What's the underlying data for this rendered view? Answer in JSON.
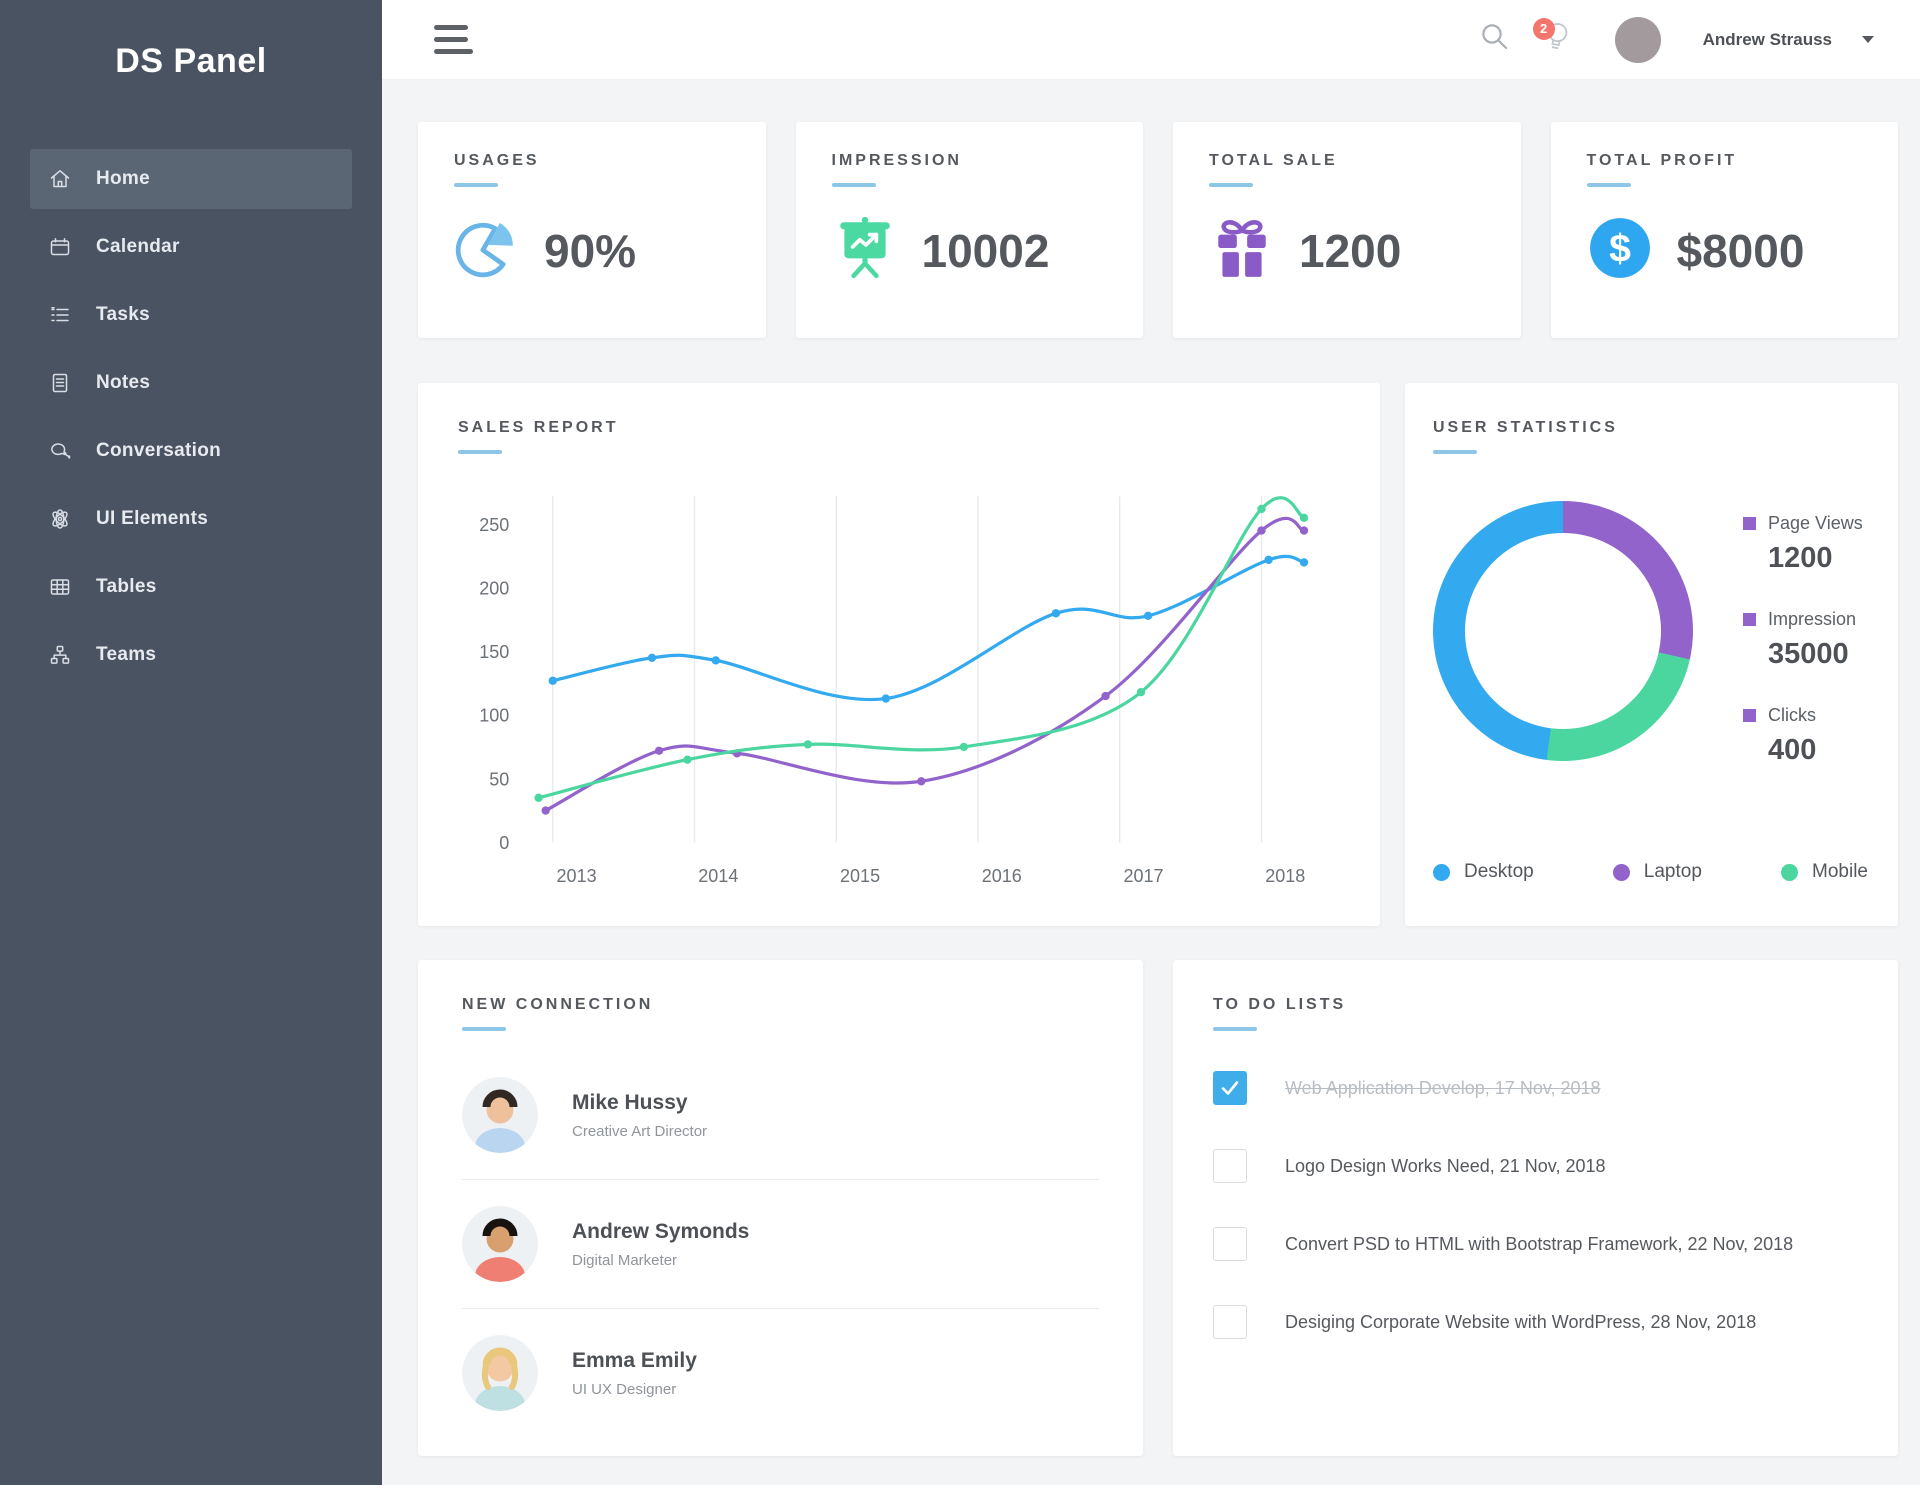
{
  "app": {
    "logo": "DS Panel"
  },
  "colors": {
    "sidebar_bg": "#4a5362",
    "sidebar_active_bg": "#5b6675",
    "accent_underline": "#8ec6e8",
    "blue": "#33a9f0",
    "purple": "#9163cb",
    "green": "#4bd6a0",
    "badge_red": "#f4756b",
    "checkbox_checked": "#3fade9"
  },
  "sidebar": {
    "items": [
      {
        "label": "Home",
        "icon": "home-icon",
        "active": true
      },
      {
        "label": "Calendar",
        "icon": "calendar-icon",
        "active": false
      },
      {
        "label": "Tasks",
        "icon": "tasks-icon",
        "active": false
      },
      {
        "label": "Notes",
        "icon": "notes-icon",
        "active": false
      },
      {
        "label": "Conversation",
        "icon": "conversation-icon",
        "active": false
      },
      {
        "label": "UI Elements",
        "icon": "atom-icon",
        "active": false
      },
      {
        "label": "Tables",
        "icon": "table-grid-icon",
        "active": false
      },
      {
        "label": "Teams",
        "icon": "org-chart-icon",
        "active": false
      }
    ]
  },
  "topbar": {
    "notification_count": "2",
    "user_name": "Andrew Strauss"
  },
  "stat_cards": [
    {
      "title": "USAGES",
      "value": "90%",
      "icon": "pie-chart-icon"
    },
    {
      "title": "IMPRESSION",
      "value": "10002",
      "icon": "presentation-icon"
    },
    {
      "title": "TOTAL SALE",
      "value": "1200",
      "icon": "gift-icon"
    },
    {
      "title": "TOTAL PROFIT",
      "value": "$8000",
      "icon": "dollar-circle-icon"
    }
  ],
  "sales_report": {
    "title": "SALES REPORT",
    "chart_data": {
      "type": "line",
      "title": "SALES REPORT",
      "x_ticks": [
        2013,
        2014,
        2015,
        2016,
        2017,
        2018
      ],
      "y_ticks": [
        0,
        50,
        100,
        150,
        200,
        250
      ],
      "xlim": [
        2012.8,
        2018.42
      ],
      "ylim": [
        0,
        272
      ],
      "grid": "vertical-only",
      "series": [
        {
          "name": "Desktop",
          "color": "#33a9f0",
          "points": [
            [
              2013,
              127
            ],
            [
              2013.7,
              145
            ],
            [
              2014.15,
              143
            ],
            [
              2015.35,
              113
            ],
            [
              2016.55,
              180
            ],
            [
              2017.2,
              178
            ],
            [
              2018.05,
              222
            ],
            [
              2018.3,
              220
            ]
          ]
        },
        {
          "name": "Laptop",
          "color": "#9163cb",
          "points": [
            [
              2012.95,
              25
            ],
            [
              2013.75,
              72
            ],
            [
              2014.3,
              70
            ],
            [
              2015.6,
              48
            ],
            [
              2016.9,
              115
            ],
            [
              2018.0,
              245
            ],
            [
              2018.3,
              245
            ]
          ]
        },
        {
          "name": "Mobile",
          "color": "#4bd6a0",
          "points": [
            [
              2012.9,
              35
            ],
            [
              2013.95,
              65
            ],
            [
              2014.8,
              77
            ],
            [
              2015.9,
              75
            ],
            [
              2017.15,
              118
            ],
            [
              2018.0,
              262
            ],
            [
              2018.3,
              255
            ]
          ]
        }
      ]
    }
  },
  "user_statistics": {
    "title": "USER STATISTICS",
    "chart_data": {
      "type": "pie",
      "donut": true,
      "start_angle_deg": 0,
      "segments": [
        {
          "label": "Laptop",
          "percent": 28.5,
          "color": "#9163cb"
        },
        {
          "label": "Mobile",
          "percent": 23.5,
          "color": "#4bd6a0"
        },
        {
          "label": "Desktop",
          "percent": 48,
          "color": "#33a9f0"
        }
      ]
    },
    "stats": [
      {
        "label": "Page Views",
        "value": "1200"
      },
      {
        "label": "Impression",
        "value": "35000"
      },
      {
        "label": "Clicks",
        "value": "400"
      }
    ],
    "device_legend": [
      {
        "label": "Desktop",
        "color": "#33a9f0"
      },
      {
        "label": "Laptop",
        "color": "#9163cb"
      },
      {
        "label": "Mobile",
        "color": "#4bd6a0"
      }
    ]
  },
  "new_connection": {
    "title": "NEW CONNECTION",
    "people": [
      {
        "name": "Mike Hussy",
        "role": "Creative Art Director",
        "avatar": {
          "shirt": "#b9d5ef",
          "hair": "#322823",
          "skin": "#eec19c"
        }
      },
      {
        "name": "Andrew Symonds",
        "role": "Digital Marketer",
        "avatar": {
          "shirt": "#ee7f72",
          "hair": "#171310",
          "skin": "#d9a06f"
        }
      },
      {
        "name": "Emma Emily",
        "role": "UI UX Designer",
        "avatar": {
          "shirt": "#bfe0e2",
          "hair": "#e9c87e",
          "skin": "#f2c9a2"
        }
      }
    ]
  },
  "todo": {
    "title": "TO DO LISTS",
    "items": [
      {
        "label": "Web Application Develop, 17 Nov, 2018",
        "done": true
      },
      {
        "label": "Logo Design Works Need, 21 Nov, 2018",
        "done": false
      },
      {
        "label": "Convert PSD to HTML with Bootstrap Framework, 22 Nov, 2018",
        "done": false
      },
      {
        "label": "Desiging Corporate Website with WordPress, 28 Nov, 2018",
        "done": false
      }
    ]
  }
}
